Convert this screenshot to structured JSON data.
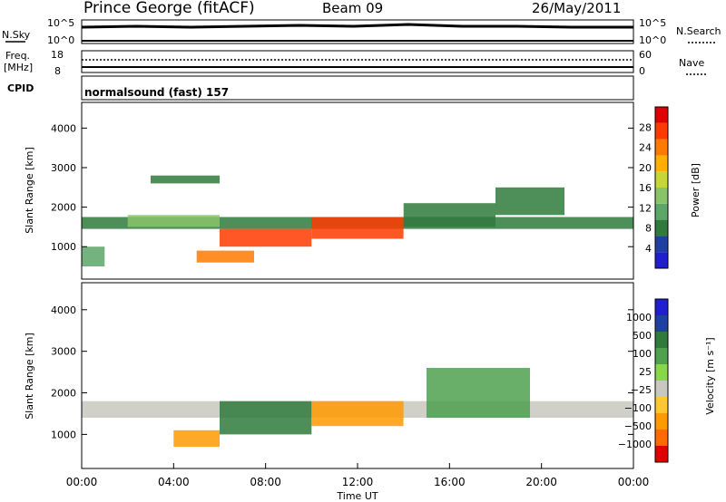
{
  "header": {
    "station": "Prince George (fitACF)",
    "beam": "Beam 09",
    "date": "26/May/2011"
  },
  "top_panels": {
    "nsky": {
      "label": "N.Sky",
      "tick_top": "10^5",
      "tick_bottom": "10^0"
    },
    "nsearch": {
      "label": "N.Search",
      "tick_top": "10^5",
      "tick_bottom": "10^0"
    },
    "freq": {
      "label_top": "Freq.",
      "label_bottom": "[MHz]",
      "tick_top": "18",
      "tick_bottom": "8"
    },
    "nave": {
      "label": "Nave",
      "tick_top": "60",
      "tick_bottom": "0"
    },
    "cpid": {
      "label": "CPID",
      "program": "normalsound (fast) 157"
    }
  },
  "colors": {
    "power_scale": [
      "#1f1fd0",
      "#1f40a0",
      "#2f7a3c",
      "#5ca66a",
      "#89c46a",
      "#c7d637",
      "#ffb000",
      "#ff7a00",
      "#ff3a00",
      "#e00000"
    ],
    "velocity_scale": [
      "#1f1fd0",
      "#1f40a0",
      "#2f7a3c",
      "#4fa04f",
      "#8ad64a",
      "#c8c8c0",
      "#ffc830",
      "#ff9a00",
      "#ff6a00",
      "#e00000"
    ]
  },
  "chart_data": [
    {
      "type": "heatmap",
      "name": "power",
      "ylabel": "Slant Range [km]",
      "yticks": [
        "1000",
        "2000",
        "3000",
        "4000"
      ],
      "xlim": [
        0,
        24
      ],
      "ylim": [
        180,
        4650
      ],
      "colorbar": {
        "label": "Power [dB]",
        "ticks": [
          "4",
          "8",
          "12",
          "16",
          "20",
          "24",
          "28"
        ],
        "range": [
          0,
          30
        ]
      },
      "regions": [
        {
          "x": [
            0.0,
            24.0
          ],
          "y": [
            1450,
            1750
          ],
          "value": 8
        },
        {
          "x": [
            2.0,
            6.0
          ],
          "y": [
            1500,
            1800
          ],
          "value": 14
        },
        {
          "x": [
            6.0,
            10.0
          ],
          "y": [
            1000,
            1450
          ],
          "value": 26
        },
        {
          "x": [
            10.0,
            14.0
          ],
          "y": [
            1200,
            1750
          ],
          "value": 26
        },
        {
          "x": [
            5.0,
            7.5
          ],
          "y": [
            600,
            900
          ],
          "value": 22
        },
        {
          "x": [
            0.0,
            1.0
          ],
          "y": [
            500,
            1000
          ],
          "value": 10
        },
        {
          "x": [
            3.0,
            6.0
          ],
          "y": [
            2600,
            2800
          ],
          "value": 8
        },
        {
          "x": [
            14.0,
            18.0
          ],
          "y": [
            1500,
            2100
          ],
          "value": 8
        },
        {
          "x": [
            18.0,
            21.0
          ],
          "y": [
            1800,
            2500
          ],
          "value": 6
        }
      ]
    },
    {
      "type": "heatmap",
      "name": "velocity",
      "ylabel": "Slant Range [km]",
      "yticks": [
        "1000",
        "2000",
        "3000",
        "4000"
      ],
      "xlabel": "Time UT",
      "xticks": [
        "00:00",
        "04:00",
        "08:00",
        "12:00",
        "16:00",
        "20:00",
        "00:00"
      ],
      "xlim": [
        0,
        24
      ],
      "ylim": [
        180,
        4650
      ],
      "colorbar": {
        "label": "Velocity [m s⁻¹]",
        "ticks": [
          "1000",
          "500",
          "100",
          "25",
          "−25",
          "−100",
          "−500",
          "−1000"
        ]
      },
      "regions": [
        {
          "x": [
            0.0,
            24.0
          ],
          "y": [
            1400,
            1800
          ],
          "value": 0
        },
        {
          "x": [
            6.0,
            10.0
          ],
          "y": [
            1000,
            1800
          ],
          "value": 150
        },
        {
          "x": [
            10.0,
            14.0
          ],
          "y": [
            1200,
            1800
          ],
          "value": -150
        },
        {
          "x": [
            4.0,
            6.0
          ],
          "y": [
            700,
            1100
          ],
          "value": -200
        },
        {
          "x": [
            15.0,
            19.5
          ],
          "y": [
            1400,
            2600
          ],
          "value": 50
        }
      ]
    }
  ]
}
